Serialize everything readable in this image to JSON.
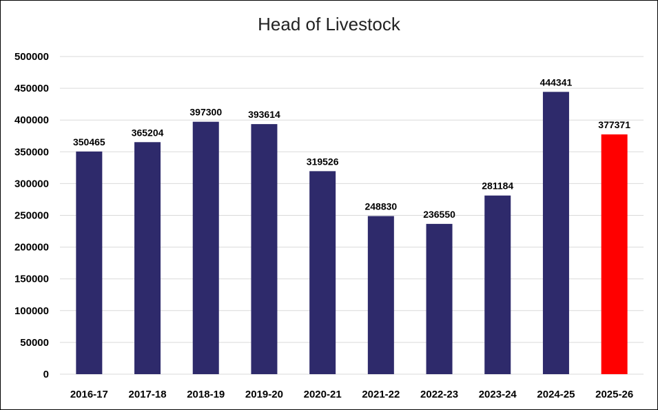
{
  "chart_data": {
    "type": "bar",
    "title": "Head of Livestock",
    "xlabel": "",
    "ylabel": "",
    "categories": [
      "2016-17",
      "2017-18",
      "2018-19",
      "2019-20",
      "2020-21",
      "2021-22",
      "2022-23",
      "2023-24",
      "2024-25",
      "2025-26"
    ],
    "values": [
      350465,
      365204,
      397300,
      393614,
      319526,
      248830,
      236550,
      281184,
      444341,
      377371
    ],
    "data_labels": [
      "350465",
      "365204",
      "397300",
      "393614",
      "319526",
      "248830",
      "236550",
      "281184",
      "444341",
      "377371"
    ],
    "yticks": [
      0,
      50000,
      100000,
      150000,
      200000,
      250000,
      300000,
      350000,
      400000,
      450000,
      500000
    ],
    "ytick_labels": [
      "0",
      "50000",
      "100000",
      "150000",
      "200000",
      "250000",
      "300000",
      "350000",
      "400000",
      "450000",
      "500000"
    ],
    "ylim": [
      0,
      500000
    ],
    "grid": true,
    "legend": "none",
    "colors": {
      "default_bar": "#2e2a6b",
      "highlight_bar": "#ff0000",
      "grid": "#d9d9d9"
    },
    "highlight_index": 9
  }
}
